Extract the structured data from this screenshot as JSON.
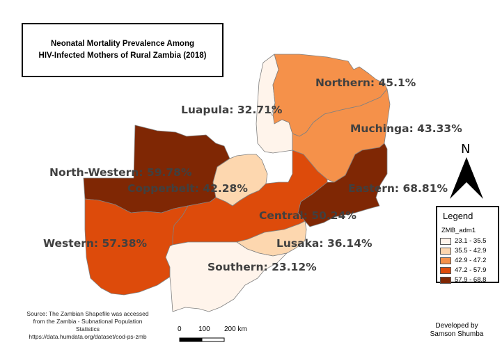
{
  "title": {
    "line1": "Neonatal Mortality Prevalence Among",
    "line2": "HIV-Infected Mothers of Rural Zambia (2018)"
  },
  "provinces": [
    {
      "name": "Northern",
      "label": "Northern: 45.1%",
      "value": 45.1,
      "color": "#f5914a"
    },
    {
      "name": "Luapula",
      "label": "Luapula: 32.71%",
      "value": 32.71,
      "color": "#fff4eb"
    },
    {
      "name": "Muchinga",
      "label": "Muchinga: 43.33%",
      "value": 43.33,
      "color": "#f5914a"
    },
    {
      "name": "North-Western",
      "label": "North-Western: 59.78%",
      "value": 59.78,
      "color": "#7f2704"
    },
    {
      "name": "Copperbelt",
      "label": "Copperbelt: 42.28%",
      "value": 42.28,
      "color": "#fdd7af"
    },
    {
      "name": "Eastern",
      "label": "Eastern: 68.81%",
      "value": 68.81,
      "color": "#7f2704"
    },
    {
      "name": "Central",
      "label": "Central: 50.24%",
      "value": 50.24,
      "color": "#dd4b0b"
    },
    {
      "name": "Western",
      "label": "Western: 57.38%",
      "value": 57.38,
      "color": "#dd4b0b"
    },
    {
      "name": "Lusaka",
      "label": "Lusaka: 36.14%",
      "value": 36.14,
      "color": "#fdd7af"
    },
    {
      "name": "Southern",
      "label": "Southern: 23.12%",
      "value": 23.12,
      "color": "#fff4eb"
    }
  ],
  "legend": {
    "title": "Legend",
    "layer": "ZMB_adm1",
    "classes": [
      {
        "range": "23.1 - 35.5",
        "color": "#fff4eb"
      },
      {
        "range": "35.5 - 42.9",
        "color": "#fdd7af"
      },
      {
        "range": "42.9 - 47.2",
        "color": "#f5914a"
      },
      {
        "range": "47.2 - 57.9",
        "color": "#dd4b0b"
      },
      {
        "range": "57.9 - 68.8",
        "color": "#7f2704"
      }
    ]
  },
  "north_arrow": {
    "label": "N",
    "icon": "north-arrow-icon"
  },
  "scale_bar": {
    "ticks": [
      "0",
      "100",
      "200 km"
    ]
  },
  "source_note": {
    "line1": "Source: The Zambian Shapefile was accessed",
    "line2": "from the Zambia - Subnational Population",
    "line3": "Statistics",
    "line4": "https://data.humdata.org/dataset/cod-ps-zmb"
  },
  "credit": {
    "line1": "Developed by",
    "line2": "Samson Shumba"
  }
}
